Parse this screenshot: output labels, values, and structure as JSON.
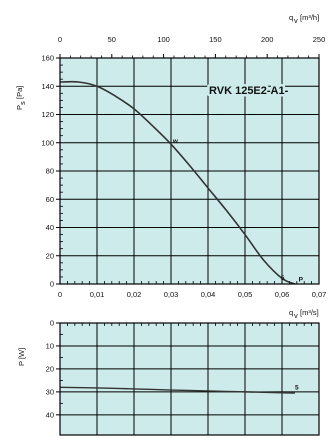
{
  "chart_data": [
    {
      "type": "line",
      "model_label": "RVK 125E2-A1-",
      "top_axis": {
        "label": "q",
        "label_sub": "v",
        "unit": "[m³/h]",
        "range": [
          0,
          250
        ],
        "ticks": [
          "0",
          "50",
          "100",
          "150",
          "200",
          "250"
        ],
        "tick_values": [
          0,
          50,
          100,
          150,
          200,
          250
        ]
      },
      "x_axis": {
        "label": "q",
        "label_sub": "v",
        "unit": "[m³/s]",
        "range": [
          0,
          0.07
        ],
        "ticks": [
          "0",
          "0,01",
          "0,02",
          "0,03",
          "0,04",
          "0,05",
          "0,06",
          "0,07"
        ],
        "tick_values": [
          0,
          0.01,
          0.02,
          0.03,
          0.04,
          0.05,
          0.06,
          0.07
        ]
      },
      "y_axis": {
        "label": "P",
        "label_sub": "s",
        "unit": "[Pa]",
        "range": [
          0,
          160
        ],
        "ticks": [
          "0",
          "20",
          "40",
          "60",
          "80",
          "100",
          "120",
          "140",
          "160"
        ],
        "tick_values": [
          0,
          20,
          40,
          60,
          80,
          100,
          120,
          140,
          160
        ]
      },
      "grid": true,
      "background_color": "#cdebea",
      "line_color": "#333333",
      "series": [
        {
          "x": [
            0,
            0.005,
            0.01,
            0.015,
            0.02,
            0.025,
            0.03,
            0.035,
            0.04,
            0.045,
            0.05,
            0.055,
            0.06,
            0.0635
          ],
          "y": [
            143,
            143,
            140,
            133,
            124,
            112,
            99,
            84,
            68,
            52,
            35,
            17,
            4,
            0
          ]
        }
      ],
      "annotations": [
        {
          "text": "w",
          "x": 0.0305,
          "y": 99
        },
        {
          "text": "5",
          "x": 0.0597,
          "y": 2
        },
        {
          "text": "P",
          "x": 0.0645,
          "y": 1
        }
      ]
    },
    {
      "type": "line",
      "y_axis": {
        "label": "P [W]",
        "range": [
          0,
          40
        ],
        "ticks": [
          "0",
          "10",
          "20",
          "30",
          "40"
        ],
        "tick_values": [
          0,
          10,
          20,
          30,
          40
        ],
        "inverted": true
      },
      "x_axis": {
        "range": [
          0,
          0.07
        ]
      },
      "grid": true,
      "background_color": "#cdebea",
      "line_color": "#333333",
      "series": [
        {
          "x": [
            0,
            0.01,
            0.02,
            0.03,
            0.04,
            0.05,
            0.06,
            0.0635
          ],
          "y": [
            28,
            28.3,
            28.7,
            29.2,
            29.6,
            30,
            30.4,
            30.5
          ]
        }
      ],
      "annotations": [
        {
          "text": "5",
          "x": 0.0635,
          "y": 29.5
        }
      ]
    }
  ]
}
